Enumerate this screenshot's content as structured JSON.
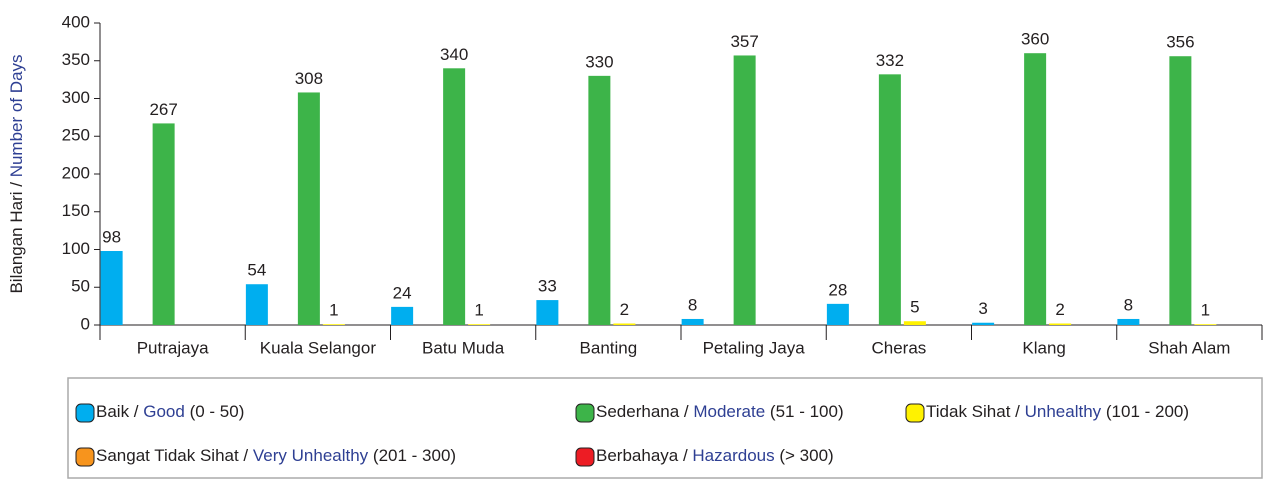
{
  "chart_data": {
    "type": "bar",
    "y_label": "Bilangan Hari / Number of Days",
    "y_label_highlight": "Number of Days",
    "categories": [
      "Putrajaya",
      "Kuala Selangor",
      "Batu Muda",
      "Banting",
      "Petaling Jaya",
      "Cheras",
      "Klang",
      "Shah Alam"
    ],
    "series": [
      {
        "name": "Baik / Good (0 - 50)",
        "highlight": "Good",
        "color": "#00aeef",
        "values": [
          98,
          54,
          24,
          33,
          8,
          28,
          3,
          8
        ]
      },
      {
        "name": "Sederhana / Moderate (51 - 100)",
        "highlight": "Moderate",
        "color": "#3db449",
        "values": [
          267,
          308,
          340,
          330,
          357,
          332,
          360,
          356
        ]
      },
      {
        "name": "Tidak Sihat / Unhealthy (101 - 200)",
        "highlight": "Unhealthy",
        "color": "#fff200",
        "values": [
          null,
          1,
          1,
          2,
          null,
          5,
          2,
          1
        ]
      },
      {
        "name": "Sangat Tidak Sihat / Very Unhealthy (201 - 300)",
        "highlight": "Very Unhealthy",
        "color": "#f7941d",
        "values": [
          null,
          null,
          null,
          null,
          null,
          null,
          null,
          null
        ]
      },
      {
        "name": "Berbahaya / Hazardous (> 300)",
        "highlight": "Hazardous",
        "color": "#ed1c24",
        "values": [
          null,
          null,
          null,
          null,
          null,
          null,
          null,
          null
        ]
      }
    ],
    "ylim": [
      0,
      400
    ],
    "yticks": [
      0,
      50,
      100,
      150,
      200,
      250,
      300,
      350,
      400
    ]
  }
}
